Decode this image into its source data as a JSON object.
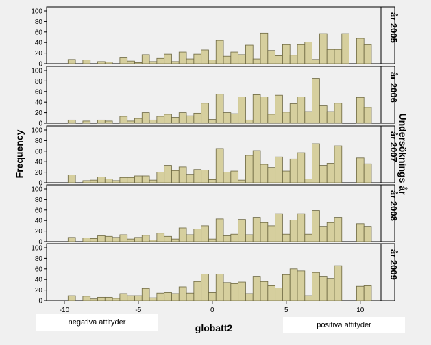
{
  "chart_data": {
    "type": "histogram",
    "xlabel": "globatt2",
    "ylabel": "Frequency",
    "facet_label": "Undersöknings år",
    "xlim": [
      -11.2,
      11.4
    ],
    "ylim": [
      0,
      100
    ],
    "x_ticks": [
      -10,
      -5,
      0,
      5,
      10
    ],
    "y_ticks": [
      0,
      20,
      40,
      60,
      80,
      100
    ],
    "bin_width": 0.5,
    "bar_color": "#d6cf9e",
    "bar_edge_color": "#6b6640",
    "annotation_left": "negativa attityder",
    "annotation_right": "positiva attityder",
    "panels": [
      {
        "name": "år 2005",
        "bins": [
          {
            "x": -9.5,
            "y": 8
          },
          {
            "x": -8.5,
            "y": 7
          },
          {
            "x": -7.5,
            "y": 4
          },
          {
            "x": -7.0,
            "y": 3
          },
          {
            "x": -6.0,
            "y": 11
          },
          {
            "x": -5.5,
            "y": 5
          },
          {
            "x": -5.0,
            "y": 2
          },
          {
            "x": -4.5,
            "y": 17
          },
          {
            "x": -4.0,
            "y": 4
          },
          {
            "x": -3.5,
            "y": 10
          },
          {
            "x": -3.0,
            "y": 18
          },
          {
            "x": -2.5,
            "y": 4
          },
          {
            "x": -2.0,
            "y": 22
          },
          {
            "x": -1.5,
            "y": 9
          },
          {
            "x": -1.0,
            "y": 18
          },
          {
            "x": -0.5,
            "y": 26
          },
          {
            "x": 0.0,
            "y": 7
          },
          {
            "x": 0.5,
            "y": 44
          },
          {
            "x": 1.0,
            "y": 14
          },
          {
            "x": 1.5,
            "y": 22
          },
          {
            "x": 2.0,
            "y": 17
          },
          {
            "x": 2.5,
            "y": 35
          },
          {
            "x": 3.0,
            "y": 9
          },
          {
            "x": 3.5,
            "y": 58
          },
          {
            "x": 4.0,
            "y": 25
          },
          {
            "x": 4.5,
            "y": 15
          },
          {
            "x": 5.0,
            "y": 36
          },
          {
            "x": 5.5,
            "y": 16
          },
          {
            "x": 6.0,
            "y": 36
          },
          {
            "x": 6.5,
            "y": 41
          },
          {
            "x": 7.0,
            "y": 8
          },
          {
            "x": 7.5,
            "y": 57
          },
          {
            "x": 8.0,
            "y": 27
          },
          {
            "x": 8.5,
            "y": 27
          },
          {
            "x": 9.0,
            "y": 57
          },
          {
            "x": 10.0,
            "y": 48
          },
          {
            "x": 10.5,
            "y": 36
          }
        ]
      },
      {
        "name": "år 2006",
        "bins": [
          {
            "x": -9.5,
            "y": 6
          },
          {
            "x": -8.5,
            "y": 4
          },
          {
            "x": -7.5,
            "y": 6
          },
          {
            "x": -7.0,
            "y": 4
          },
          {
            "x": -6.0,
            "y": 13
          },
          {
            "x": -5.5,
            "y": 4
          },
          {
            "x": -5.0,
            "y": 9
          },
          {
            "x": -4.5,
            "y": 20
          },
          {
            "x": -4.0,
            "y": 6
          },
          {
            "x": -3.5,
            "y": 13
          },
          {
            "x": -3.0,
            "y": 17
          },
          {
            "x": -2.5,
            "y": 11
          },
          {
            "x": -2.0,
            "y": 20
          },
          {
            "x": -1.5,
            "y": 14
          },
          {
            "x": -1.0,
            "y": 19
          },
          {
            "x": -0.5,
            "y": 38
          },
          {
            "x": 0.0,
            "y": 7
          },
          {
            "x": 0.5,
            "y": 55
          },
          {
            "x": 1.0,
            "y": 20
          },
          {
            "x": 1.5,
            "y": 18
          },
          {
            "x": 2.0,
            "y": 50
          },
          {
            "x": 2.5,
            "y": 6
          },
          {
            "x": 3.0,
            "y": 54
          },
          {
            "x": 3.5,
            "y": 50
          },
          {
            "x": 4.0,
            "y": 17
          },
          {
            "x": 4.5,
            "y": 53
          },
          {
            "x": 5.0,
            "y": 21
          },
          {
            "x": 5.5,
            "y": 37
          },
          {
            "x": 6.0,
            "y": 50
          },
          {
            "x": 6.5,
            "y": 22
          },
          {
            "x": 7.0,
            "y": 85
          },
          {
            "x": 7.5,
            "y": 33
          },
          {
            "x": 8.0,
            "y": 22
          },
          {
            "x": 8.5,
            "y": 38
          },
          {
            "x": 10.0,
            "y": 49
          },
          {
            "x": 10.5,
            "y": 30
          }
        ]
      },
      {
        "name": "år 2007",
        "bins": [
          {
            "x": -9.5,
            "y": 15
          },
          {
            "x": -8.5,
            "y": 4
          },
          {
            "x": -8.0,
            "y": 5
          },
          {
            "x": -7.5,
            "y": 11
          },
          {
            "x": -7.0,
            "y": 7
          },
          {
            "x": -6.5,
            "y": 4
          },
          {
            "x": -6.0,
            "y": 10
          },
          {
            "x": -5.5,
            "y": 10
          },
          {
            "x": -5.0,
            "y": 13
          },
          {
            "x": -4.5,
            "y": 13
          },
          {
            "x": -4.0,
            "y": 5
          },
          {
            "x": -3.5,
            "y": 20
          },
          {
            "x": -3.0,
            "y": 33
          },
          {
            "x": -2.5,
            "y": 23
          },
          {
            "x": -2.0,
            "y": 30
          },
          {
            "x": -1.5,
            "y": 16
          },
          {
            "x": -1.0,
            "y": 25
          },
          {
            "x": -0.5,
            "y": 24
          },
          {
            "x": 0.0,
            "y": 6
          },
          {
            "x": 0.5,
            "y": 65
          },
          {
            "x": 1.0,
            "y": 20
          },
          {
            "x": 1.5,
            "y": 22
          },
          {
            "x": 2.0,
            "y": 5
          },
          {
            "x": 2.5,
            "y": 52
          },
          {
            "x": 3.0,
            "y": 61
          },
          {
            "x": 3.5,
            "y": 35
          },
          {
            "x": 4.0,
            "y": 29
          },
          {
            "x": 4.5,
            "y": 49
          },
          {
            "x": 5.0,
            "y": 22
          },
          {
            "x": 5.5,
            "y": 45
          },
          {
            "x": 6.0,
            "y": 57
          },
          {
            "x": 6.5,
            "y": 7
          },
          {
            "x": 7.0,
            "y": 74
          },
          {
            "x": 7.5,
            "y": 33
          },
          {
            "x": 8.0,
            "y": 37
          },
          {
            "x": 8.5,
            "y": 70
          },
          {
            "x": 10.0,
            "y": 47
          },
          {
            "x": 10.5,
            "y": 36
          }
        ]
      },
      {
        "name": "år 2008",
        "bins": [
          {
            "x": -9.5,
            "y": 8
          },
          {
            "x": -8.5,
            "y": 7
          },
          {
            "x": -8.0,
            "y": 6
          },
          {
            "x": -7.5,
            "y": 11
          },
          {
            "x": -7.0,
            "y": 10
          },
          {
            "x": -6.5,
            "y": 8
          },
          {
            "x": -6.0,
            "y": 13
          },
          {
            "x": -5.5,
            "y": 5
          },
          {
            "x": -5.0,
            "y": 8
          },
          {
            "x": -4.5,
            "y": 12
          },
          {
            "x": -4.0,
            "y": 3
          },
          {
            "x": -3.5,
            "y": 16
          },
          {
            "x": -3.0,
            "y": 10
          },
          {
            "x": -2.5,
            "y": 5
          },
          {
            "x": -2.0,
            "y": 26
          },
          {
            "x": -1.5,
            "y": 13
          },
          {
            "x": -1.0,
            "y": 24
          },
          {
            "x": -0.5,
            "y": 30
          },
          {
            "x": 0.0,
            "y": 5
          },
          {
            "x": 0.5,
            "y": 43
          },
          {
            "x": 1.0,
            "y": 11
          },
          {
            "x": 1.5,
            "y": 14
          },
          {
            "x": 2.0,
            "y": 42
          },
          {
            "x": 2.5,
            "y": 13
          },
          {
            "x": 3.0,
            "y": 46
          },
          {
            "x": 3.5,
            "y": 36
          },
          {
            "x": 4.0,
            "y": 30
          },
          {
            "x": 4.5,
            "y": 53
          },
          {
            "x": 5.0,
            "y": 14
          },
          {
            "x": 5.5,
            "y": 41
          },
          {
            "x": 6.0,
            "y": 53
          },
          {
            "x": 6.5,
            "y": 14
          },
          {
            "x": 7.0,
            "y": 59
          },
          {
            "x": 7.5,
            "y": 29
          },
          {
            "x": 8.0,
            "y": 36
          },
          {
            "x": 8.5,
            "y": 46
          },
          {
            "x": 10.0,
            "y": 34
          },
          {
            "x": 10.5,
            "y": 29
          }
        ]
      },
      {
        "name": "år 2009",
        "bins": [
          {
            "x": -9.5,
            "y": 9
          },
          {
            "x": -8.5,
            "y": 8
          },
          {
            "x": -8.0,
            "y": 3
          },
          {
            "x": -7.5,
            "y": 6
          },
          {
            "x": -7.0,
            "y": 6
          },
          {
            "x": -6.5,
            "y": 4
          },
          {
            "x": -6.0,
            "y": 13
          },
          {
            "x": -5.5,
            "y": 9
          },
          {
            "x": -5.0,
            "y": 9
          },
          {
            "x": -4.5,
            "y": 23
          },
          {
            "x": -4.0,
            "y": 5
          },
          {
            "x": -3.5,
            "y": 14
          },
          {
            "x": -3.0,
            "y": 15
          },
          {
            "x": -2.5,
            "y": 13
          },
          {
            "x": -2.0,
            "y": 26
          },
          {
            "x": -1.5,
            "y": 14
          },
          {
            "x": -1.0,
            "y": 36
          },
          {
            "x": -0.5,
            "y": 50
          },
          {
            "x": 0.0,
            "y": 15
          },
          {
            "x": 0.5,
            "y": 50
          },
          {
            "x": 1.0,
            "y": 34
          },
          {
            "x": 1.5,
            "y": 32
          },
          {
            "x": 2.0,
            "y": 35
          },
          {
            "x": 2.5,
            "y": 13
          },
          {
            "x": 3.0,
            "y": 46
          },
          {
            "x": 3.5,
            "y": 36
          },
          {
            "x": 4.0,
            "y": 28
          },
          {
            "x": 4.5,
            "y": 24
          },
          {
            "x": 5.0,
            "y": 49
          },
          {
            "x": 5.5,
            "y": 60
          },
          {
            "x": 6.0,
            "y": 56
          },
          {
            "x": 6.5,
            "y": 9
          },
          {
            "x": 7.0,
            "y": 53
          },
          {
            "x": 7.5,
            "y": 46
          },
          {
            "x": 8.0,
            "y": 42
          },
          {
            "x": 8.5,
            "y": 66
          },
          {
            "x": 10.0,
            "y": 27
          },
          {
            "x": 10.5,
            "y": 28
          }
        ]
      }
    ]
  }
}
